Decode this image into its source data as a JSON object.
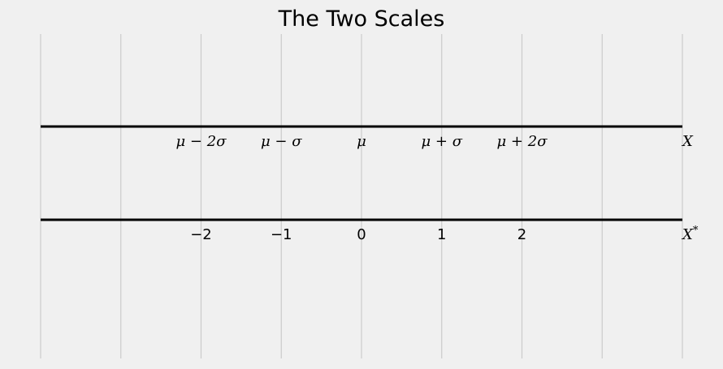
{
  "chart_data": {
    "type": "line",
    "title": "The Two Scales",
    "xlim": [
      -4,
      4
    ],
    "grid_x": [
      -4,
      -3,
      -2,
      -1,
      0,
      1,
      2,
      3,
      4
    ],
    "grid": true,
    "scales": [
      {
        "name": "X",
        "axis_label": "X",
        "ticks": [
          {
            "x": -2,
            "label": "μ − 2σ"
          },
          {
            "x": -1,
            "label": "μ − σ"
          },
          {
            "x": 0,
            "label": "μ"
          },
          {
            "x": 1,
            "label": "μ + σ"
          },
          {
            "x": 2,
            "label": "μ + 2σ"
          }
        ]
      },
      {
        "name": "X*",
        "axis_label": "X*",
        "ticks": [
          {
            "x": -2,
            "label": "−2"
          },
          {
            "x": -1,
            "label": "−1"
          },
          {
            "x": 0,
            "label": "0"
          },
          {
            "x": 1,
            "label": "1"
          },
          {
            "x": 2,
            "label": "2"
          }
        ]
      }
    ]
  },
  "colors": {
    "background": "#f0f0f0",
    "grid": "#cbcbcb",
    "axis_line": "#000000"
  }
}
